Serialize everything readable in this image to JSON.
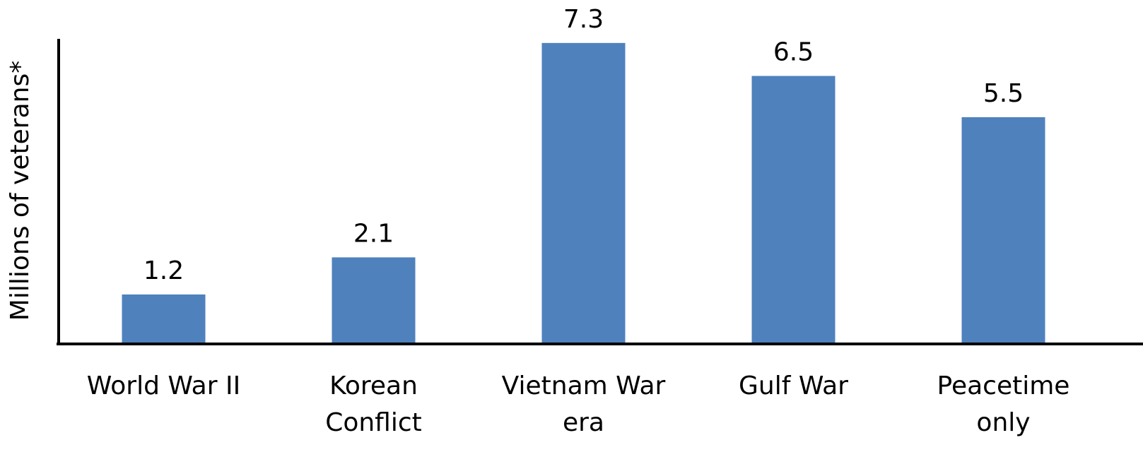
{
  "chart_data": {
    "type": "bar",
    "y_label": "Millions of veterans*",
    "categories": [
      "World War II",
      "Korean Conflict",
      "Vietnam War era",
      "Gulf War",
      "Peacetime only"
    ],
    "values": [
      1.2,
      2.1,
      7.3,
      6.5,
      5.5
    ],
    "color": "#4f81bd",
    "ylim": [
      0,
      7.4
    ]
  }
}
